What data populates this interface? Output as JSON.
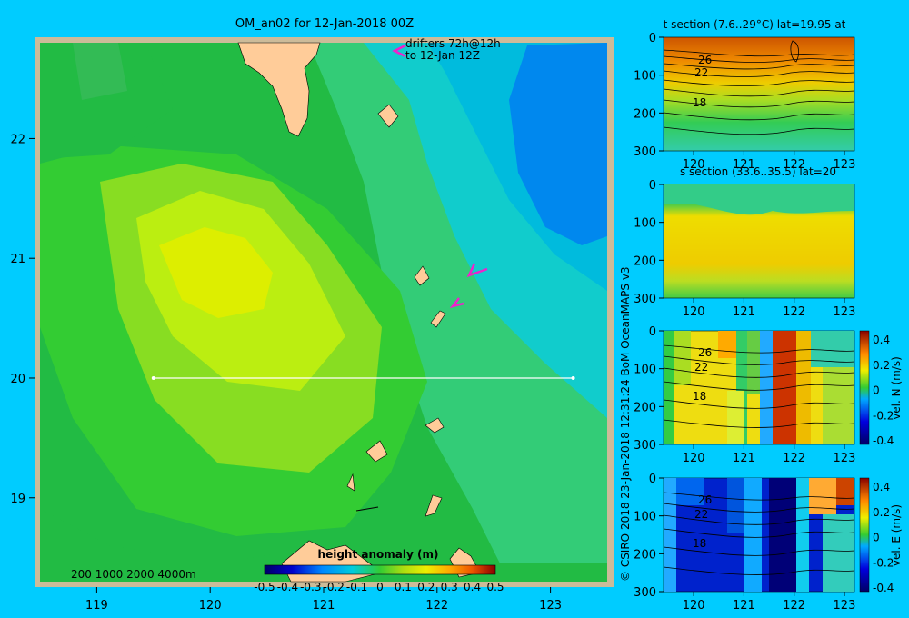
{
  "chart_data": [
    {
      "type": "heatmap",
      "title": "OM_an02 for 12-Jan-2018 00Z",
      "xlabel": "",
      "ylabel": "",
      "xlim": [
        118.5,
        123.5
      ],
      "ylim": [
        18.3,
        22.8
      ],
      "x_ticks": [
        "119",
        "120",
        "121",
        "122",
        "123"
      ],
      "y_ticks": [
        "22",
        "21",
        "20",
        "19"
      ],
      "annotations": [
        "drifters 72h@12h",
        "to 12-Jan 12Z"
      ],
      "depth_legend": "200  1000  2000  4000m",
      "section_line": {
        "lat": 20,
        "lon_start": 119.5,
        "lon_end": 123.2
      },
      "colorbar": {
        "label": "height anomaly  (m)",
        "min": -0.5,
        "max": 0.5,
        "tick_labels": [
          "-0.5",
          "-0.4",
          "-0.3",
          "-0.2",
          "-0.1",
          "0",
          "0.1",
          "0.2",
          "0.3",
          "0.4",
          "0.5"
        ]
      }
    },
    {
      "type": "heatmap",
      "title": "t section (7.6..29°C) lat=19.95 at",
      "x_ticks": [
        "120",
        "121",
        "122",
        "123"
      ],
      "y_ticks": [
        "0",
        "100",
        "200",
        "300"
      ],
      "contour_labels": [
        "26",
        "22",
        "18"
      ]
    },
    {
      "type": "heatmap",
      "title": "s section (33.6..35.5) lat=20",
      "x_ticks": [
        "120",
        "121",
        "122",
        "123"
      ],
      "y_ticks": [
        "0",
        "100",
        "200",
        "300"
      ]
    },
    {
      "type": "heatmap",
      "title": "",
      "x_ticks": [
        "120",
        "121",
        "122",
        "123"
      ],
      "y_ticks": [
        "0",
        "100",
        "200",
        "300"
      ],
      "contour_labels": [
        "26",
        "22",
        "18"
      ],
      "colorbar": {
        "label": "vel. N (m/s)",
        "tick_labels": [
          "0.4",
          "0.2",
          "0",
          "-0.2",
          "-0.4"
        ]
      }
    },
    {
      "type": "heatmap",
      "title": "",
      "x_ticks": [
        "120",
        "121",
        "122",
        "123"
      ],
      "y_ticks": [
        "0",
        "100",
        "200",
        "300"
      ],
      "contour_labels": [
        "26",
        "22",
        "18"
      ],
      "colorbar": {
        "label": "vel. E (m/s)",
        "tick_labels": [
          "0.4",
          "0.2",
          "0",
          "-0.2",
          "-0.4"
        ]
      }
    }
  ],
  "credit": "© CSIRO 2018   23-Jan-2018 12:31:24 BoM OceanMAPS v3"
}
